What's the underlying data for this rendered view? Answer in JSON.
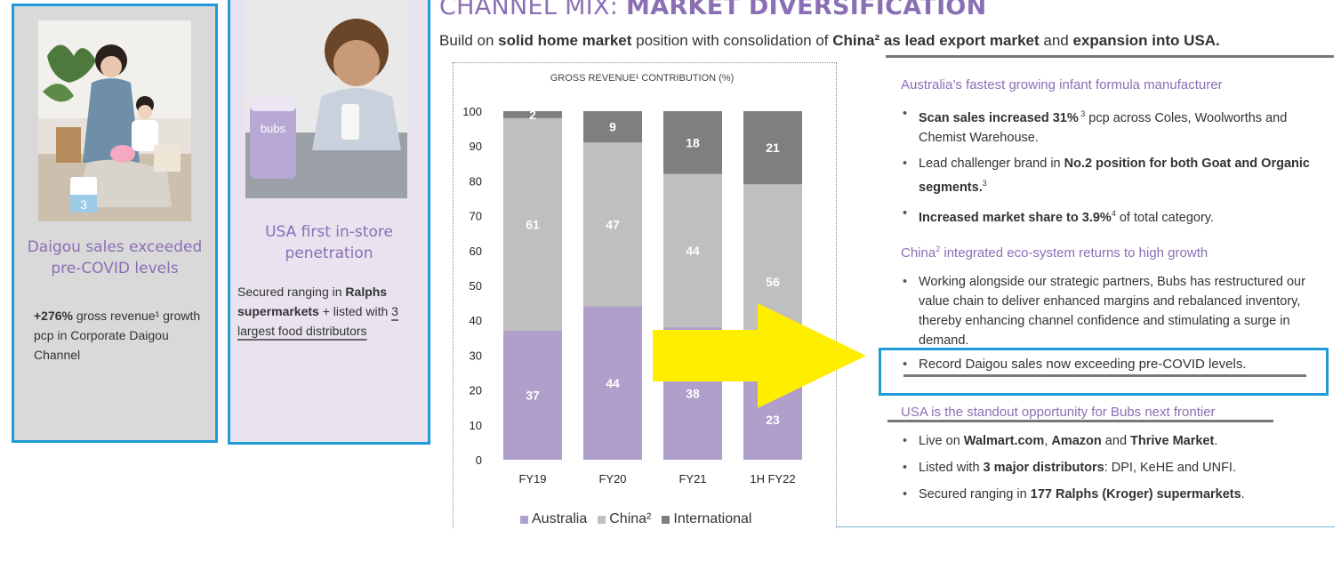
{
  "header": {
    "title_prefix": "CHANNEL MIX: ",
    "title_bold": "MARKET DIVERSIFICATION",
    "subtitle_1": "Build on ",
    "subtitle_2": "solid home market",
    "subtitle_3": " position with consolidation of ",
    "subtitle_4": "China² as lead export market",
    "subtitle_5": " and ",
    "subtitle_6": "expansion into USA."
  },
  "daigou_panel": {
    "title": "Daigou sales exceeded pre-COVID levels",
    "body_bold": "+276%",
    "body_rest": " gross revenue¹ growth pcp in Corporate Daigou Channel"
  },
  "usa_panel": {
    "title": "USA first in-store penetration",
    "body_1": "Secured ranging in ",
    "body_bold_1": "Ralphs supermarkets",
    "body_2": " + listed with ",
    "body_underlined": "3 largest food distributors"
  },
  "colors": {
    "accent_purple": "#8a6fb5",
    "australia": "#b09fcb",
    "china": "#bfbfbf",
    "international": "#7f7f7f",
    "highlight_border": "#1f9bd7",
    "arrow": "#ffee00"
  },
  "chart_data": {
    "type": "bar",
    "stacked": true,
    "title": "GROSS REVENUE¹ CONTRIBUTION (%)",
    "categories": [
      "FY19",
      "FY20",
      "FY21",
      "1H FY22"
    ],
    "series": [
      {
        "name": "Australia",
        "values": [
          37,
          44,
          38,
          23
        ]
      },
      {
        "name": "China",
        "values": [
          61,
          47,
          44,
          56
        ]
      },
      {
        "name": "International",
        "values": [
          2,
          9,
          18,
          21
        ]
      }
    ],
    "yticks": [
      0,
      10,
      20,
      30,
      40,
      50,
      60,
      70,
      80,
      90,
      100
    ],
    "ylim": [
      0,
      100
    ],
    "grid": false,
    "legend": {
      "position": "bottom",
      "labels": [
        "Australia",
        "China²",
        "International"
      ]
    }
  },
  "right": {
    "section1": {
      "head": "Australia’s fastest growing infant formula manufacturer",
      "b1_bold_1": "Scan sales increased 31%",
      "b1_sup": " 3",
      "b1_rest": " pcp across Coles, Woolworths and Chemist Warehouse.",
      "b2_1": "Lead challenger brand in ",
      "b2_bold": "No.2 position for both Goat and Organic segments.",
      "b2_sup": "3",
      "b3_bold": "Increased market share to 3.9%",
      "b3_sup": "4",
      "b3_rest": " of total category."
    },
    "section2": {
      "head_1": "China",
      "head_sup": "2",
      "head_2": " integrated eco-system returns to high growth",
      "b1": "Working alongside our strategic partners, Bubs has restructured our value chain to deliver enhanced margins and rebalanced inventory, thereby enhancing channel confidence and stimulating a surge in demand.",
      "highlight": "Record Daigou sales now exceeding pre-COVID levels."
    },
    "section3": {
      "head": "USA is the standout opportunity for Bubs next frontier",
      "b1_1": "Live on ",
      "b1_bold_1": "Walmart.com",
      "b1_2": ", ",
      "b1_bold_2": "Amazon",
      "b1_3": " and ",
      "b1_bold_3": "Thrive Market",
      "b1_4": ".",
      "b2_1": "Listed with ",
      "b2_bold": "3 major distributors",
      "b2_2": ": DPI, KeHE and UNFI.",
      "b3_1": "Secured ranging in ",
      "b3_bold": "177 Ralphs (Kroger) supermarkets",
      "b3_2": "."
    }
  }
}
